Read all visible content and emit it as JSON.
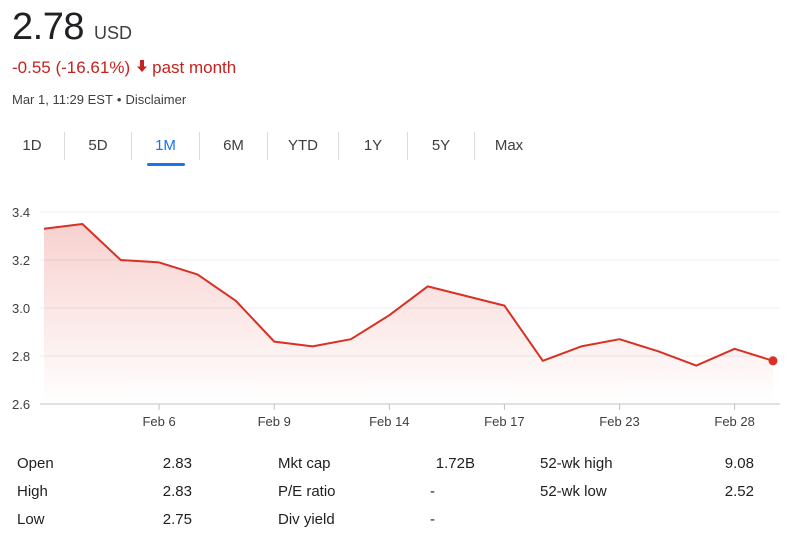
{
  "quote": {
    "price": "2.78",
    "currency": "USD",
    "change": "-0.55 (-16.61%)",
    "change_period": "past month",
    "timestamp": "Mar 1, 11:29 EST",
    "disclaimer": "Disclaimer"
  },
  "tabs": [
    {
      "label": "1D",
      "active": false
    },
    {
      "label": "5D",
      "active": false
    },
    {
      "label": "1M",
      "active": true
    },
    {
      "label": "6M",
      "active": false
    },
    {
      "label": "YTD",
      "active": false
    },
    {
      "label": "1Y",
      "active": false
    },
    {
      "label": "5Y",
      "active": false
    },
    {
      "label": "Max",
      "active": false
    }
  ],
  "colors": {
    "line": "#d93025",
    "negative": "#c5221f",
    "accent": "#1a73e8"
  },
  "chart_data": {
    "type": "area",
    "x": [
      "2023-02-01",
      "2023-02-02",
      "2023-02-03",
      "2023-02-06",
      "2023-02-07",
      "2023-02-08",
      "2023-02-09",
      "2023-02-10",
      "2023-02-13",
      "2023-02-14",
      "2023-02-15",
      "2023-02-16",
      "2023-02-17",
      "2023-02-21",
      "2023-02-22",
      "2023-02-23",
      "2023-02-24",
      "2023-02-27",
      "2023-02-28",
      "2023-03-01"
    ],
    "values": [
      3.33,
      3.35,
      3.2,
      3.19,
      3.14,
      3.03,
      2.86,
      2.84,
      2.87,
      2.97,
      3.09,
      3.05,
      3.01,
      2.78,
      2.84,
      2.87,
      2.82,
      2.76,
      2.83,
      2.78
    ],
    "xtick_labels": [
      "Feb 6",
      "Feb 9",
      "Feb 14",
      "Feb 17",
      "Feb 23",
      "Feb 28"
    ],
    "xtick_index": [
      3,
      6,
      9,
      12,
      15,
      18
    ],
    "yticks": [
      2.6,
      2.8,
      3.0,
      3.2,
      3.4
    ],
    "ytick_labels": [
      "2.6",
      "2.8",
      "3.0",
      "3.2",
      "3.4"
    ],
    "ylim": [
      2.6,
      3.4
    ],
    "grid": true
  },
  "stats": [
    {
      "label": "Open",
      "value": "2.83"
    },
    {
      "label": "High",
      "value": "2.83"
    },
    {
      "label": "Low",
      "value": "2.75"
    },
    {
      "label": "Mkt cap",
      "value": "1.72B"
    },
    {
      "label": "P/E ratio",
      "value": "-"
    },
    {
      "label": "Div yield",
      "value": "-"
    },
    {
      "label": "52-wk high",
      "value": "9.08"
    },
    {
      "label": "52-wk low",
      "value": "2.52"
    }
  ]
}
